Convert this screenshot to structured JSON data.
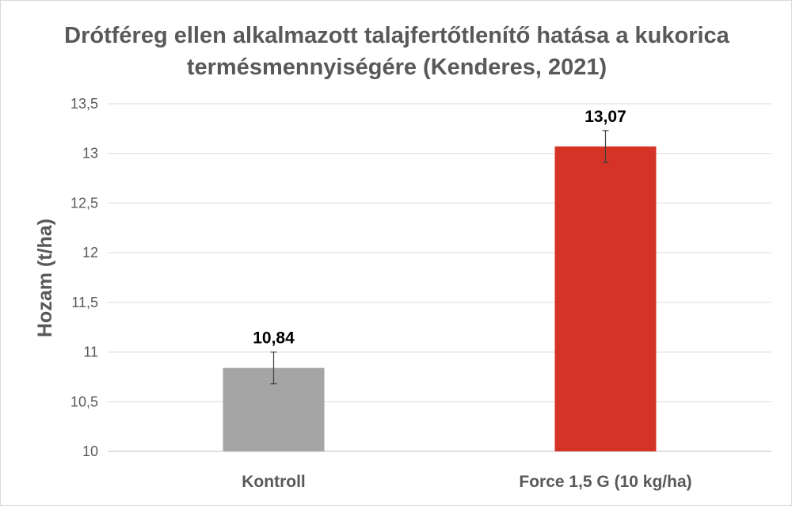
{
  "chart_data": {
    "type": "bar",
    "title": "Drótféreg ellen alkalmazott talajfertőtlenítő hatása a kukorica termésmennyiségére (Kenderes, 2021)",
    "xlabel": "",
    "ylabel": "Hozam (t/ha)",
    "categories": [
      "Kontroll",
      "Force 1,5 G (10 kg/ha)"
    ],
    "values": [
      10.84,
      13.07
    ],
    "value_labels": [
      "10,84",
      "13,07"
    ],
    "error_bars": [
      0.16,
      0.16
    ],
    "bar_colors": [
      "#a5a5a5",
      "#d43325"
    ],
    "ylim": [
      10,
      13.5
    ],
    "yticks": [
      10,
      10.5,
      11,
      11.5,
      12,
      12.5,
      13,
      13.5
    ],
    "ytick_labels": [
      "10",
      "10,5",
      "11",
      "11,5",
      "12",
      "12,5",
      "13",
      "13,5"
    ],
    "grid": true,
    "legend": "none"
  }
}
